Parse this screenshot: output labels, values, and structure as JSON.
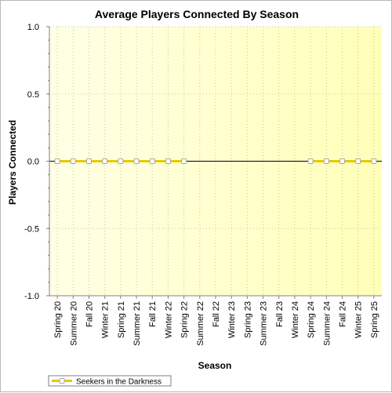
{
  "chart_data": {
    "type": "line",
    "title": "Average Players Connected By Season",
    "xlabel": "Season",
    "ylabel": "Players Connected",
    "ylim": [
      -1.0,
      1.0
    ],
    "yticks": [
      "1.0",
      "0.5",
      "0.0",
      "-0.5",
      "-1.0"
    ],
    "ytick_values": [
      1.0,
      0.5,
      0.0,
      -0.5,
      -1.0
    ],
    "categories": [
      "Spring 20",
      "Summer 20",
      "Fall 20",
      "Winter 21",
      "Spring 21",
      "Summer 21",
      "Fall 21",
      "Winter 22",
      "Spring 22",
      "Summer 22",
      "Fall 22",
      "Winter 23",
      "Spring 23",
      "Summer 23",
      "Fall 23",
      "Winter 24",
      "Spring 24",
      "Summer 24",
      "Fall 24",
      "Winter 25",
      "Spring 25"
    ],
    "series": [
      {
        "name": "Seekers in the Darkness",
        "color": "#e8c800",
        "marker_fill": "#ffffff",
        "values": [
          0,
          0,
          0,
          0,
          0,
          0,
          0,
          0,
          0,
          null,
          null,
          null,
          null,
          null,
          null,
          null,
          0,
          0,
          0,
          0,
          0
        ]
      }
    ],
    "grid": true,
    "legend_placement": "bottom-left",
    "background_gradient": [
      "#ffffe6",
      "#ffffb8"
    ]
  }
}
